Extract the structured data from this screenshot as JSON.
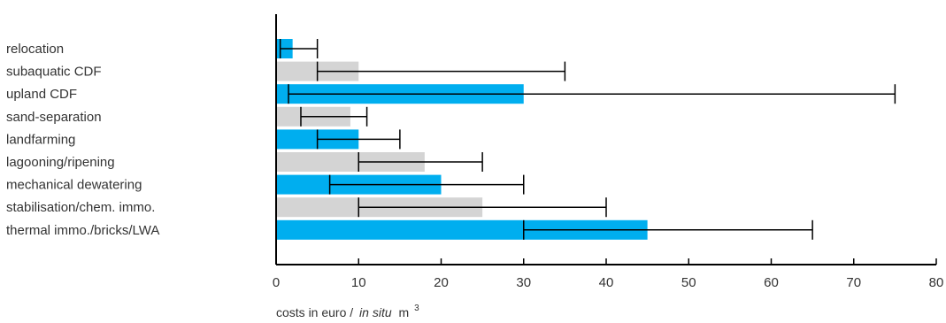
{
  "chart_data": {
    "type": "bar",
    "orientation": "horizontal",
    "title": "",
    "categories": [
      "relocation",
      "subaquatic CDF",
      "upland CDF",
      "sand-separation",
      "landfarming",
      "lagooning/ripening",
      "mechanical dewatering",
      "stabilisation/chem. immo.",
      "thermal immo./bricks/LWA"
    ],
    "values": [
      2,
      10,
      30,
      9,
      10,
      18,
      20,
      25,
      45
    ],
    "range_low": [
      0.5,
      5,
      1.5,
      3,
      5,
      10,
      6.5,
      10,
      30
    ],
    "range_high": [
      5,
      35,
      75,
      11,
      15,
      25,
      30,
      40,
      65
    ],
    "bar_colors": [
      "#00aeef",
      "#d4d4d4",
      "#00aeef",
      "#d4d4d4",
      "#00aeef",
      "#d4d4d4",
      "#00aeef",
      "#d4d4d4",
      "#00aeef"
    ],
    "xlim": [
      0,
      80
    ],
    "xticks": [
      0,
      10,
      20,
      30,
      40,
      50,
      60,
      70,
      80
    ],
    "xlabel_main": "costs in euro /",
    "xlabel_italic": "in situ",
    "xlabel_unit": "m",
    "xlabel_sup": "3",
    "grid": false,
    "legend": "none"
  }
}
